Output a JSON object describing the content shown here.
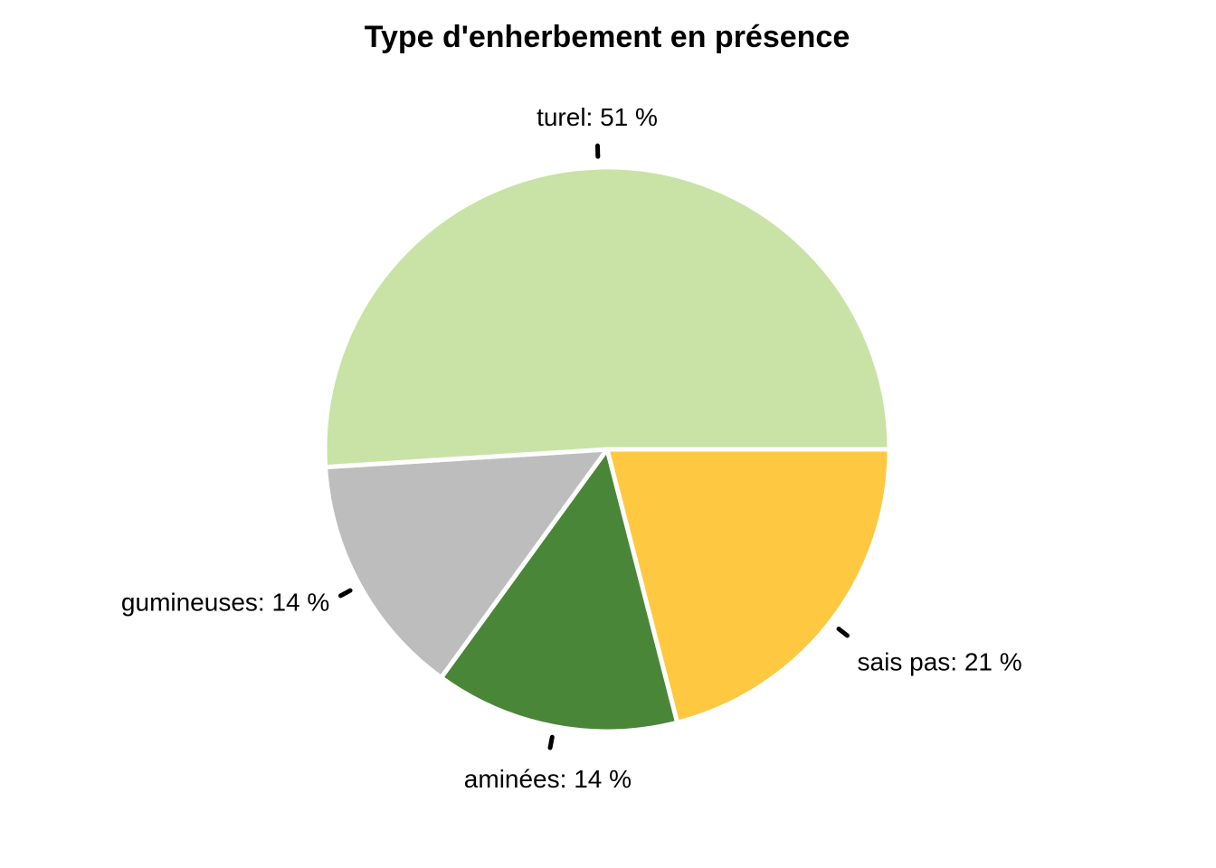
{
  "chart_data": {
    "type": "pie",
    "title": "Type d'enherbement en présence",
    "start_angle_deg": 0,
    "direction": "clockwise",
    "slices": [
      {
        "name": "sais pas",
        "label": "sais pas: 21 %",
        "percent": 21,
        "color": "#FEC841"
      },
      {
        "name": "aminees",
        "label": "aminées: 14 %",
        "percent": 14,
        "color": "#4A8638"
      },
      {
        "name": "gumineuses",
        "label": "gumineuses: 14 %",
        "percent": 14,
        "color": "#BDBDBD"
      },
      {
        "name": "turel",
        "label": "turel: 51 %",
        "percent": 51,
        "color": "#C8E3A5"
      }
    ]
  }
}
